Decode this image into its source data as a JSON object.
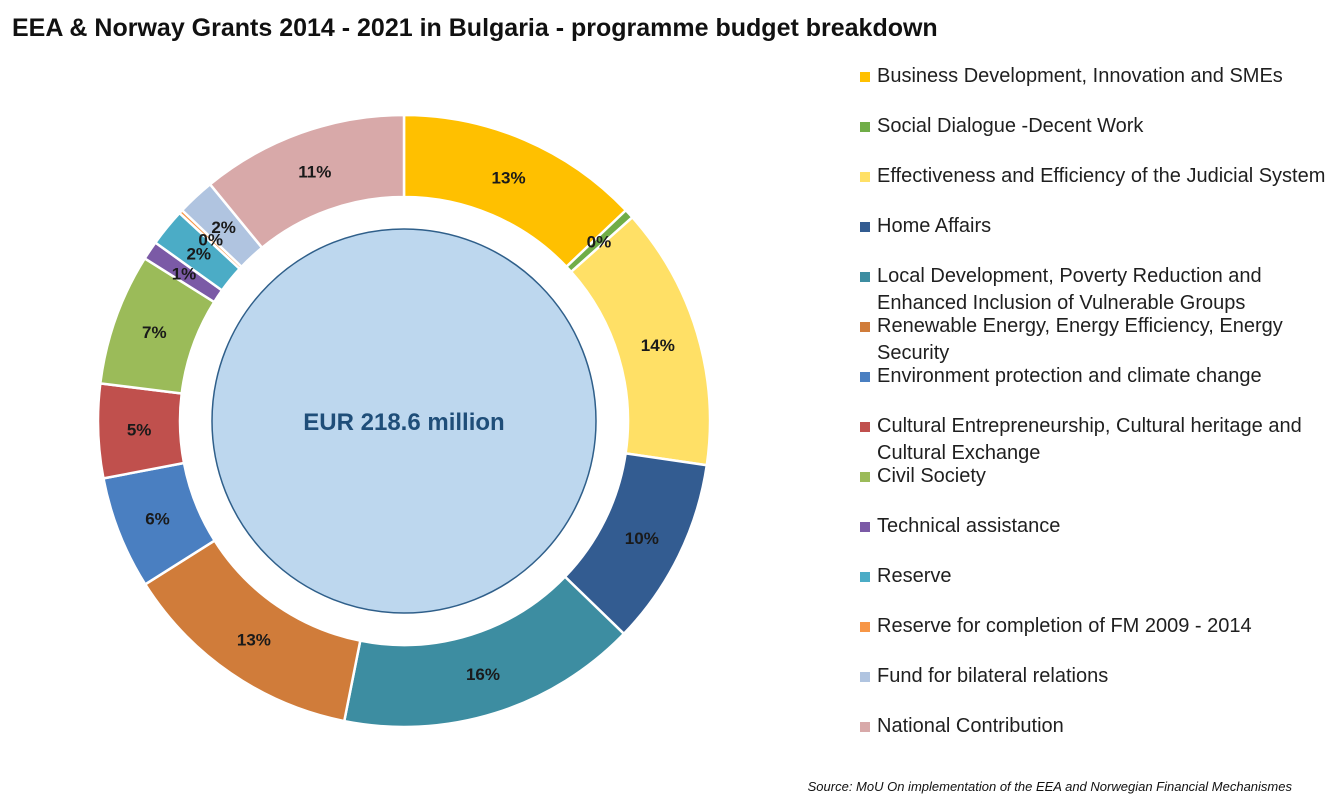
{
  "chart_data": {
    "type": "pie",
    "title": "EEA & Norway Grants 2014 - 2021 in Bulgaria - programme budget breakdown",
    "center_label": "EUR 218.6 million",
    "center_color": "#bdd7ee",
    "legend_position": "right",
    "slices": [
      {
        "label": "Business Development, Innovation and SMEs",
        "value": 13,
        "value_label": "13%",
        "color": "#ffc000"
      },
      {
        "label": "Social Dialogue -Decent Work",
        "value": 0.5,
        "value_label": "0%",
        "color": "#70ad47"
      },
      {
        "label": "Effectiveness and Efficiency of the Judicial System",
        "value": 14,
        "value_label": "14%",
        "color": "#ffe066"
      },
      {
        "label": "Home Affairs",
        "value": 10,
        "value_label": "10%",
        "color": "#335c91"
      },
      {
        "label": "Local Development, Poverty Reduction and Enhanced Inclusion of Vulnerable Groups",
        "value": 16,
        "value_label": "16%",
        "color": "#3d8da1"
      },
      {
        "label": "Renewable Energy, Energy Efficiency, Energy Security",
        "value": 13,
        "value_label": "13%",
        "color": "#d07c3a"
      },
      {
        "label": "Environment protection and climate change",
        "value": 6,
        "value_label": "6%",
        "color": "#4a7fc1"
      },
      {
        "label": "Cultural Entrepreneurship, Cultural heritage and Cultural Exchange",
        "value": 5,
        "value_label": "5%",
        "color": "#c0504d"
      },
      {
        "label": "Civil Society",
        "value": 7,
        "value_label": "7%",
        "color": "#9bbb59"
      },
      {
        "label": "Technical assistance",
        "value": 1,
        "value_label": "1%",
        "color": "#7b5aa6"
      },
      {
        "label": "Reserve",
        "value": 2,
        "value_label": "2%",
        "color": "#4bacc6"
      },
      {
        "label": "Reserve for completion of FM 2009 - 2014",
        "value": 0.2,
        "value_label": "0%",
        "color": "#f79646"
      },
      {
        "label": "Fund for bilateral relations",
        "value": 2,
        "value_label": "2%",
        "color": "#b0c4e0"
      },
      {
        "label": "National Contribution",
        "value": 11,
        "value_label": "11%",
        "color": "#d8a9a9"
      }
    ]
  },
  "source_note": "Source: MoU On implementation of the EEA and Norwegian Financial Mechanismes"
}
